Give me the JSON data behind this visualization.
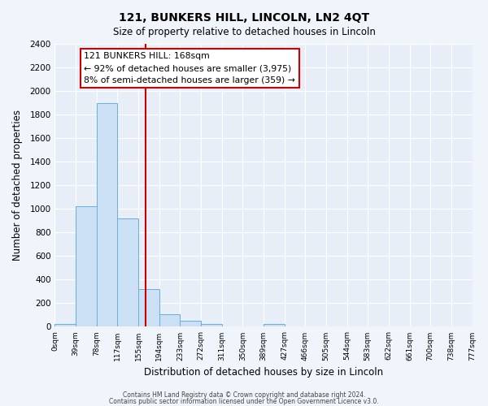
{
  "title": "121, BUNKERS HILL, LINCOLN, LN2 4QT",
  "subtitle": "Size of property relative to detached houses in Lincoln",
  "xlabel": "Distribution of detached houses by size in Lincoln",
  "ylabel": "Number of detached properties",
  "bin_edges": [
    0,
    39,
    78,
    117,
    155,
    194,
    233,
    272,
    311,
    350,
    389,
    427,
    466,
    505,
    544,
    583,
    622,
    661,
    700,
    738,
    777
  ],
  "bin_labels": [
    "0sqm",
    "39sqm",
    "78sqm",
    "117sqm",
    "155sqm",
    "194sqm",
    "233sqm",
    "272sqm",
    "311sqm",
    "350sqm",
    "389sqm",
    "427sqm",
    "466sqm",
    "505sqm",
    "544sqm",
    "583sqm",
    "622sqm",
    "661sqm",
    "700sqm",
    "738sqm",
    "777sqm"
  ],
  "bar_heights": [
    25,
    1025,
    1900,
    920,
    320,
    105,
    50,
    25,
    0,
    0,
    25,
    0,
    0,
    0,
    0,
    0,
    0,
    0,
    0,
    0
  ],
  "bar_color": "#cce0f5",
  "bar_edge_color": "#6aaed6",
  "red_line_x": 168,
  "ylim": [
    0,
    2400
  ],
  "yticks": [
    0,
    200,
    400,
    600,
    800,
    1000,
    1200,
    1400,
    1600,
    1800,
    2000,
    2200,
    2400
  ],
  "annotation_title": "121 BUNKERS HILL: 168sqm",
  "annotation_line1": "← 92% of detached houses are smaller (3,975)",
  "annotation_line2": "8% of semi-detached houses are larger (359) →",
  "footer1": "Contains HM Land Registry data © Crown copyright and database right 2024.",
  "footer2": "Contains public sector information licensed under the Open Government Licence v3.0.",
  "fig_bg_color": "#f0f4fb",
  "plot_bg_color": "#e8eef8"
}
